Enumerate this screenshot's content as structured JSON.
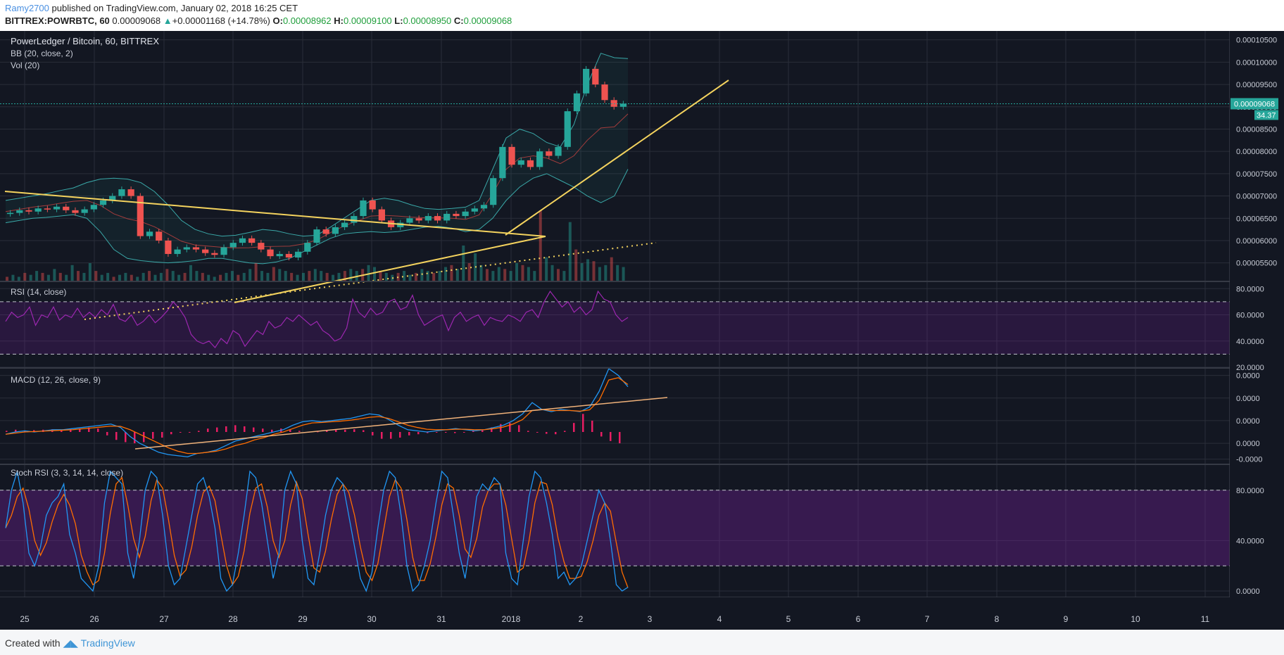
{
  "header": {
    "author": "Ramy2700",
    "published": "published on TradingView.com, January 02, 2018 16:25 CET",
    "symbol": "BITTREX:POWRBTC, 60",
    "last": "0.00009068",
    "change": "+0.00001168 (+14.78%)",
    "open_label": "O:",
    "open": "0.00008962",
    "high_label": "H:",
    "high": "0.00009100",
    "low_label": "L:",
    "low": "0.00008950",
    "close_label": "C:",
    "close": "0.00009068"
  },
  "footer": {
    "created_with": "Created with",
    "brand": "TradingView"
  },
  "colors": {
    "background": "#131722",
    "grid": "#2a2e39",
    "up": "#26a69a",
    "down": "#ef5350",
    "trendline": "#f4d35e",
    "rsi": "#9c27b0",
    "macd": "#2196f3",
    "signal": "#ff6d00",
    "stoch_k": "#2196f3",
    "stoch_d": "#ff6d00"
  },
  "chart_data": {
    "type": "candlestick",
    "title": "PowerLedger / Bitcoin, 60, BITTREX",
    "indicators": [
      "BB (20, close, 2)",
      "Vol (20)"
    ],
    "x_ticks": [
      "25",
      "26",
      "27",
      "28",
      "29",
      "30",
      "31",
      "2018",
      "2",
      "3",
      "4",
      "5",
      "6",
      "7",
      "8",
      "9",
      "10",
      "11"
    ],
    "price": {
      "ylim": [
        5.1e-05,
        0.000107
      ],
      "y_ticks": [
        "0.00010500",
        "0.00010000",
        "0.00009500",
        "0.00009000",
        "0.00008500",
        "0.00008000",
        "0.00007500",
        "0.00007000",
        "0.00006500",
        "0.00006000",
        "0.00005500"
      ],
      "last_label": "0.00009068",
      "rsi_badge": "34.37",
      "candles": [
        [
          6.6e-05,
          6.62e-05
        ],
        [
          6.62e-05,
          6.68e-05
        ],
        [
          6.68e-05,
          6.65e-05
        ],
        [
          6.65e-05,
          6.72e-05
        ],
        [
          6.72e-05,
          6.7e-05
        ],
        [
          6.7e-05,
          6.76e-05
        ],
        [
          6.76e-05,
          6.68e-05
        ],
        [
          6.68e-05,
          6.62e-05
        ],
        [
          6.62e-05,
          6.7e-05
        ],
        [
          6.7e-05,
          6.8e-05
        ],
        [
          6.8e-05,
          6.9e-05
        ],
        [
          6.9e-05,
          7e-05
        ],
        [
          7e-05,
          7.15e-05
        ],
        [
          7.15e-05,
          7e-05
        ],
        [
          7e-05,
          6.1e-05
        ],
        [
          6.1e-05,
          6.2e-05
        ],
        [
          6.2e-05,
          6e-05
        ],
        [
          6e-05,
          5.7e-05
        ],
        [
          5.7e-05,
          5.8e-05
        ],
        [
          5.8e-05,
          5.85e-05
        ],
        [
          5.85e-05,
          5.8e-05
        ],
        [
          5.8e-05,
          5.72e-05
        ],
        [
          5.72e-05,
          5.68e-05
        ],
        [
          5.68e-05,
          5.85e-05
        ],
        [
          5.85e-05,
          5.95e-05
        ],
        [
          5.95e-05,
          6.05e-05
        ],
        [
          6.05e-05,
          5.95e-05
        ],
        [
          5.95e-05,
          5.8e-05
        ],
        [
          5.8e-05,
          5.65e-05
        ],
        [
          5.65e-05,
          5.7e-05
        ],
        [
          5.7e-05,
          5.62e-05
        ],
        [
          5.62e-05,
          5.75e-05
        ],
        [
          5.75e-05,
          5.95e-05
        ],
        [
          5.95e-05,
          6.25e-05
        ],
        [
          6.25e-05,
          6.15e-05
        ],
        [
          6.15e-05,
          6.3e-05
        ],
        [
          6.3e-05,
          6.4e-05
        ],
        [
          6.4e-05,
          6.55e-05
        ],
        [
          6.55e-05,
          6.9e-05
        ],
        [
          6.9e-05,
          6.7e-05
        ],
        [
          6.7e-05,
          6.45e-05
        ],
        [
          6.45e-05,
          6.3e-05
        ],
        [
          6.3e-05,
          6.4e-05
        ],
        [
          6.4e-05,
          6.5e-05
        ],
        [
          6.5e-05,
          6.45e-05
        ],
        [
          6.45e-05,
          6.55e-05
        ],
        [
          6.55e-05,
          6.45e-05
        ],
        [
          6.45e-05,
          6.6e-05
        ],
        [
          6.6e-05,
          6.55e-05
        ],
        [
          6.55e-05,
          6.65e-05
        ],
        [
          6.65e-05,
          6.72e-05
        ],
        [
          6.72e-05,
          6.8e-05
        ],
        [
          6.8e-05,
          7.4e-05
        ],
        [
          7.4e-05,
          8.1e-05
        ],
        [
          8.1e-05,
          7.7e-05
        ],
        [
          7.7e-05,
          7.8e-05
        ],
        [
          7.8e-05,
          7.65e-05
        ],
        [
          7.65e-05,
          8e-05
        ],
        [
          8e-05,
          7.9e-05
        ],
        [
          7.9e-05,
          8.1e-05
        ],
        [
          8.1e-05,
          8.9e-05
        ],
        [
          8.9e-05,
          9.3e-05
        ],
        [
          9.3e-05,
          9.85e-05
        ],
        [
          9.85e-05,
          9.5e-05
        ],
        [
          9.5e-05,
          9.15e-05
        ],
        [
          9.15e-05,
          9e-05
        ],
        [
          9e-05,
          9.07e-05
        ]
      ],
      "bb_upper": [
        6.9e-05,
        6.95e-05,
        7e-05,
        7.05e-05,
        7.12e-05,
        7.18e-05,
        7.3e-05,
        7.38e-05,
        7.4e-05,
        7.38e-05,
        7.3e-05,
        7.1e-05,
        6.8e-05,
        6.45e-05,
        6.25e-05,
        6.15e-05,
        6.1e-05,
        6.12e-05,
        6.18e-05,
        6.25e-05,
        6.22e-05,
        6.15e-05,
        6.1e-05,
        6.12e-05,
        6.3e-05,
        6.5e-05,
        6.7e-05,
        6.9e-05,
        6.95e-05,
        6.9e-05,
        6.8e-05,
        6.72e-05,
        6.7e-05,
        6.72e-05,
        6.75e-05,
        6.9e-05,
        7.6e-05,
        8.3e-05,
        8.5e-05,
        8.4e-05,
        8.2e-05,
        8.1e-05,
        8.6e-05,
        9.5e-05,
        0.000102,
        0.000101,
        0.0001008
      ],
      "bb_lower": [
        6.4e-05,
        6.45e-05,
        6.5e-05,
        6.52e-05,
        6.55e-05,
        6.58e-05,
        6.5e-05,
        6.2e-05,
        5.8e-05,
        5.6e-05,
        5.55e-05,
        5.52e-05,
        5.5e-05,
        5.52e-05,
        5.55e-05,
        5.6e-05,
        5.6e-05,
        5.55e-05,
        5.5e-05,
        5.48e-05,
        5.52e-05,
        5.6e-05,
        5.75e-05,
        5.9e-05,
        6.05e-05,
        6.15e-05,
        6.18e-05,
        6.2e-05,
        6.18e-05,
        6.2e-05,
        6.25e-05,
        6.3e-05,
        6.32e-05,
        6.28e-05,
        6.2e-05,
        6.25e-05,
        6.5e-05,
        6.9e-05,
        7.2e-05,
        7.4e-05,
        7.5e-05,
        7.35e-05,
        7.2e-05,
        7e-05,
        6.85e-05,
        7e-05,
        7.6e-05
      ],
      "volume": [
        2,
        3,
        2,
        4,
        3,
        5,
        4,
        3,
        6,
        4,
        3,
        8,
        5,
        4,
        9,
        5,
        3,
        4,
        2,
        3,
        4,
        3,
        2,
        4,
        5,
        3,
        4,
        6,
        5,
        3,
        4,
        8,
        5,
        4,
        3,
        2,
        3,
        4,
        5,
        3,
        4,
        6,
        9,
        5,
        4,
        7,
        6,
        5,
        4,
        3,
        4,
        5,
        6,
        5,
        4,
        3,
        4,
        5,
        6,
        5,
        6,
        8,
        7,
        5,
        4,
        3,
        4,
        5,
        3,
        4,
        6,
        5,
        4,
        5,
        7,
        8,
        6,
        18,
        9,
        14,
        8,
        6,
        5,
        7,
        6,
        5,
        9,
        8,
        7,
        5,
        36,
        12,
        8,
        6,
        5,
        30,
        16,
        9,
        11,
        10,
        7,
        8,
        12,
        8,
        7
      ]
    },
    "rsi": {
      "label": "RSI (14, close)",
      "ylim": [
        20,
        85
      ],
      "y_ticks": [
        "80.0000",
        "60.0000",
        "40.0000",
        "20.0000"
      ],
      "upper": 70,
      "lower": 30,
      "values": [
        55,
        62,
        58,
        60,
        66,
        52,
        60,
        58,
        66,
        56,
        60,
        58,
        65,
        58,
        62,
        58,
        64,
        60,
        68,
        57,
        55,
        60,
        52,
        55,
        60,
        54,
        58,
        63,
        70,
        65,
        58,
        45,
        40,
        38,
        40,
        35,
        42,
        38,
        48,
        45,
        36,
        42,
        48,
        45,
        55,
        50,
        52,
        58,
        55,
        60,
        56,
        52,
        55,
        48,
        45,
        40,
        42,
        50,
        72,
        62,
        58,
        65,
        60,
        62,
        70,
        72,
        64,
        66,
        75,
        60,
        52,
        55,
        58,
        60,
        48,
        58,
        62,
        55,
        58,
        60,
        52,
        58,
        56,
        55,
        60,
        58,
        55,
        62,
        64,
        58,
        70,
        78,
        72,
        66,
        70,
        62,
        66,
        60,
        64,
        78,
        72,
        70,
        60,
        55,
        58
      ]
    },
    "macd": {
      "label": "MACD (12, 26, close, 9)",
      "y_ticks": [
        "0.0000",
        "0.0000",
        "0.0000",
        "0.0000",
        "-0.0000"
      ],
      "ylim": [
        -1.4,
        2.8
      ],
      "macd": [
        -0.1,
        0.0,
        0.05,
        0.0,
        0.05,
        0.1,
        0.1,
        0.15,
        0.2,
        0.25,
        0.3,
        0.35,
        0.2,
        -0.2,
        -0.5,
        -0.7,
        -0.9,
        -1.0,
        -1.05,
        -1.1,
        -0.95,
        -0.9,
        -0.8,
        -0.6,
        -0.4,
        -0.3,
        -0.2,
        -0.1,
        0.0,
        0.1,
        0.3,
        0.45,
        0.5,
        0.45,
        0.5,
        0.55,
        0.6,
        0.7,
        0.8,
        0.75,
        0.55,
        0.3,
        0.1,
        0.05,
        0.0,
        0.05,
        0.1,
        0.15,
        0.1,
        0.05,
        0.1,
        0.2,
        0.3,
        0.5,
        0.8,
        1.3,
        1.0,
        0.9,
        1.0,
        0.95,
        0.9,
        1.1,
        1.8,
        2.8,
        2.5,
        2.0
      ],
      "signal": [
        -0.1,
        -0.05,
        0.0,
        0.02,
        0.04,
        0.06,
        0.08,
        0.1,
        0.14,
        0.18,
        0.22,
        0.26,
        0.25,
        0.1,
        -0.1,
        -0.3,
        -0.5,
        -0.7,
        -0.85,
        -0.95,
        -0.95,
        -0.9,
        -0.85,
        -0.75,
        -0.6,
        -0.5,
        -0.35,
        -0.25,
        -0.1,
        0.0,
        0.15,
        0.3,
        0.4,
        0.42,
        0.45,
        0.48,
        0.52,
        0.58,
        0.65,
        0.68,
        0.6,
        0.45,
        0.3,
        0.2,
        0.12,
        0.1,
        0.1,
        0.12,
        0.12,
        0.1,
        0.1,
        0.15,
        0.22,
        0.35,
        0.55,
        0.95,
        1.0,
        0.95,
        0.95,
        0.95,
        0.92,
        0.98,
        1.4,
        2.3,
        2.4,
        2.1
      ],
      "hist": [
        0.05,
        0.1,
        0.05,
        0.08,
        0.1,
        0.12,
        0.1,
        0.12,
        0.15,
        0.2,
        0.15,
        -0.15,
        -0.35,
        -0.45,
        -0.5,
        -0.45,
        -0.3,
        -0.25,
        -0.1,
        0.0,
        0.0,
        0.05,
        0.15,
        0.2,
        0.25,
        0.3,
        0.25,
        0.2,
        0.15,
        0.1,
        0.15,
        0.1,
        0.05,
        0.0,
        0.02,
        0.05,
        0.1,
        0.1,
        0.12,
        0.08,
        -0.15,
        -0.3,
        -0.3,
        -0.25,
        -0.15,
        -0.1,
        -0.05,
        -0.02,
        0.0,
        -0.05,
        0.0,
        0.05,
        0.1,
        0.2,
        0.35,
        0.4,
        0.3,
        0.05,
        0.0,
        -0.08,
        -0.1,
        0.05,
        0.4,
        0.8,
        0.5,
        -0.2,
        -0.4,
        -0.5
      ]
    },
    "stoch_rsi": {
      "label": "Stoch RSI (3, 3, 14, 14, close)",
      "ylim": [
        -5,
        100
      ],
      "y_ticks": [
        "80.0000",
        "40.0000",
        "0.0000"
      ],
      "upper": 80,
      "lower": 20,
      "k": [
        50,
        80,
        95,
        70,
        30,
        20,
        35,
        60,
        70,
        75,
        85,
        45,
        30,
        10,
        5,
        0,
        20,
        70,
        95,
        90,
        85,
        30,
        10,
        40,
        80,
        95,
        90,
        60,
        20,
        5,
        10,
        35,
        60,
        85,
        90,
        75,
        50,
        10,
        0,
        5,
        30,
        60,
        95,
        90,
        70,
        40,
        10,
        30,
        80,
        95,
        85,
        40,
        10,
        5,
        30,
        60,
        80,
        90,
        85,
        60,
        35,
        10,
        0,
        15,
        50,
        80,
        95,
        90,
        60,
        20,
        0,
        5,
        20,
        40,
        70,
        95,
        90,
        60,
        30,
        10,
        40,
        75,
        85,
        80,
        90,
        85,
        30,
        10,
        5,
        40,
        75,
        95,
        90,
        70,
        45,
        10,
        15,
        5,
        10,
        20,
        40,
        60,
        80,
        70,
        40,
        5,
        0,
        3
      ]
    }
  }
}
